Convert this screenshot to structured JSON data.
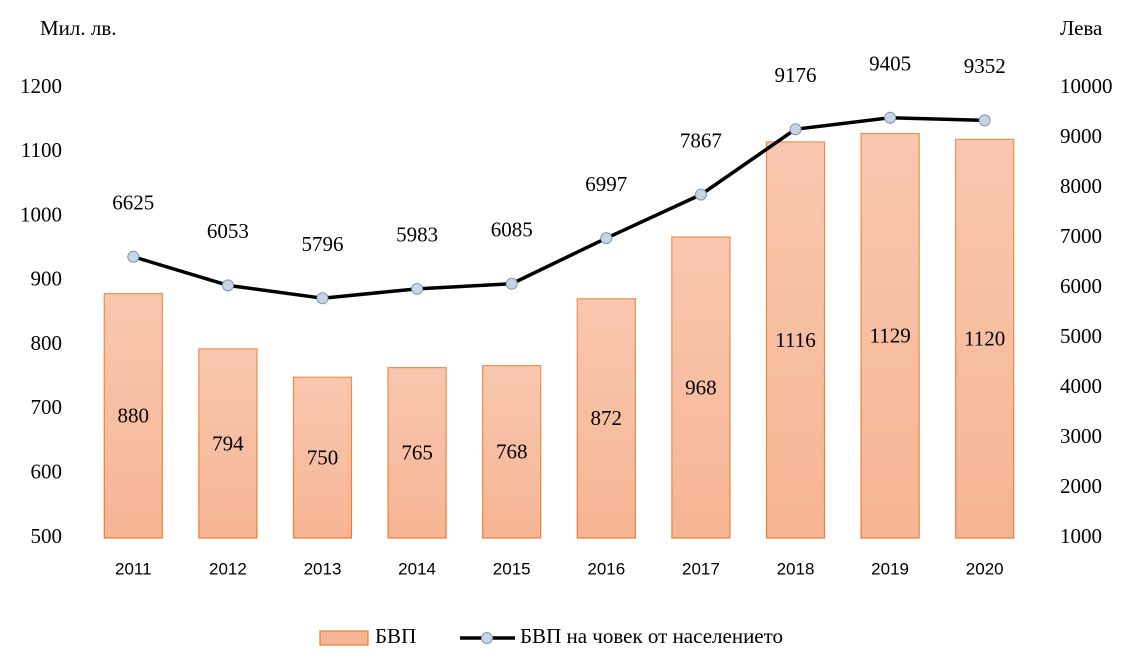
{
  "chart_data": {
    "type": "bar",
    "y_label": "Мил. лв.",
    "y2_label": "Лева",
    "categories": [
      "2011",
      "2012",
      "2013",
      "2014",
      "2015",
      "2016",
      "2017",
      "2018",
      "2019",
      "2020"
    ],
    "series": [
      {
        "name": "БВП",
        "type": "bar",
        "color": "#f6b594",
        "values": [
          880,
          794,
          750,
          765,
          768,
          872,
          968,
          1116,
          1129,
          1120
        ]
      },
      {
        "name": "БВП на човек от населението",
        "type": "line",
        "axis": "y2",
        "color": "#000000",
        "values": [
          6625,
          6053,
          5796,
          5983,
          6085,
          6997,
          7867,
          9176,
          9405,
          9352
        ]
      }
    ],
    "ylim": [
      500,
      1200
    ],
    "yticks": [
      500,
      600,
      700,
      800,
      900,
      1000,
      1100,
      1200
    ],
    "y2lim": [
      1000,
      10000
    ],
    "y2ticks": [
      1000,
      2000,
      3000,
      4000,
      5000,
      6000,
      7000,
      8000,
      9000,
      10000
    ],
    "grid": false,
    "legend": "bottom"
  }
}
